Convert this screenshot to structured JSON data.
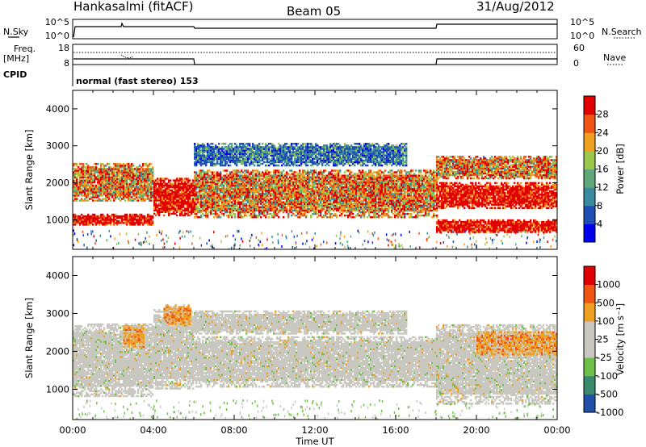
{
  "header": {
    "station": "Hankasalmi (fitACF)",
    "beam": "Beam 05",
    "date": "31/Aug/2012"
  },
  "summary_panel": {
    "left_labels": {
      "nsky": "N.Sky",
      "freq_line1": "Freq.",
      "freq_line2": "[MHz]",
      "cpid": "CPID"
    },
    "right_labels": {
      "nsearch": "N.Search",
      "nave": "Nave"
    },
    "nsky_ticks": [
      "10^5",
      "10^0"
    ],
    "nsearch_ticks": [
      "10^5",
      "10^0"
    ],
    "freq_ticks": [
      "18",
      "8"
    ],
    "nave_ticks": [
      "60",
      "0"
    ],
    "cpid_text": "normal (fast stereo) 153"
  },
  "x_axis": {
    "label": "Time UT",
    "ticks": [
      "00:00",
      "04:00",
      "08:00",
      "12:00",
      "16:00",
      "20:00",
      "00:00"
    ]
  },
  "chart_data": [
    {
      "type": "heatmap",
      "title": "",
      "xlabel": "Time UT",
      "ylabel": "Slant Range [km]",
      "x_range_hours": [
        0,
        24
      ],
      "ylim": [
        200,
        4500
      ],
      "y_ticks": [
        1000,
        2000,
        3000,
        4000
      ],
      "colorbar": {
        "label": "Power [dB]",
        "ticks": [
          "4",
          "8",
          "12",
          "16",
          "20",
          "24",
          "28"
        ],
        "colors": [
          "#0000ee",
          "#1e4fb5",
          "#3a8aa0",
          "#60a879",
          "#9bc84b",
          "#f0a020",
          "#ef5515",
          "#e00000"
        ]
      },
      "bands": [
        {
          "t0": 0.0,
          "t1": 4.0,
          "r0": 850,
          "r1": 1150,
          "level": "strong"
        },
        {
          "t0": 0.0,
          "t1": 4.0,
          "r0": 1500,
          "r1": 2500,
          "level": "mixed"
        },
        {
          "t0": 4.0,
          "t1": 6.0,
          "r0": 1100,
          "r1": 2100,
          "level": "strong"
        },
        {
          "t0": 6.0,
          "t1": 18.0,
          "r0": 1050,
          "r1": 2350,
          "level": "mixed"
        },
        {
          "t0": 6.0,
          "t1": 16.5,
          "r0": 2450,
          "r1": 3050,
          "level": "weak"
        },
        {
          "t0": 18.0,
          "t1": 24.0,
          "r0": 650,
          "r1": 1000,
          "level": "strong"
        },
        {
          "t0": 18.0,
          "t1": 24.0,
          "r0": 1300,
          "r1": 2000,
          "level": "strong"
        },
        {
          "t0": 18.0,
          "t1": 24.0,
          "r0": 2100,
          "r1": 2700,
          "level": "mixed"
        }
      ]
    },
    {
      "type": "heatmap",
      "title": "",
      "xlabel": "Time UT",
      "ylabel": "Slant Range [km]",
      "x_range_hours": [
        0,
        24
      ],
      "ylim": [
        200,
        4500
      ],
      "y_ticks": [
        1000,
        2000,
        3000,
        4000
      ],
      "colorbar": {
        "label": "Velocity [m s⁻¹]",
        "ticks": [
          "1000",
          "500",
          "100",
          "25",
          "-25",
          "-100",
          "-500",
          "-1000"
        ],
        "colors": [
          "#2050a8",
          "#3a8a6e",
          "#6fbf4a",
          "#c8c8c0",
          "#c8c8c0",
          "#f0a020",
          "#ef5515",
          "#e00000"
        ]
      },
      "bands": [
        {
          "t0": 0.0,
          "t1": 4.0,
          "r0": 800,
          "r1": 2700,
          "level": "gray"
        },
        {
          "t0": 4.0,
          "t1": 6.0,
          "r0": 1000,
          "r1": 3100,
          "level": "gray"
        },
        {
          "t0": 6.0,
          "t1": 18.0,
          "r0": 1050,
          "r1": 2400,
          "level": "gray"
        },
        {
          "t0": 6.0,
          "t1": 16.5,
          "r0": 2450,
          "r1": 3050,
          "level": "gray"
        },
        {
          "t0": 18.0,
          "t1": 24.0,
          "r0": 600,
          "r1": 2700,
          "level": "gray"
        },
        {
          "t0": 2.5,
          "t1": 3.5,
          "r0": 2100,
          "r1": 2700,
          "level": "orange"
        },
        {
          "t0": 4.5,
          "t1": 5.8,
          "r0": 2700,
          "r1": 3200,
          "level": "orange"
        },
        {
          "t0": 20.0,
          "t1": 24.0,
          "r0": 1900,
          "r1": 2500,
          "level": "orange"
        }
      ]
    }
  ]
}
